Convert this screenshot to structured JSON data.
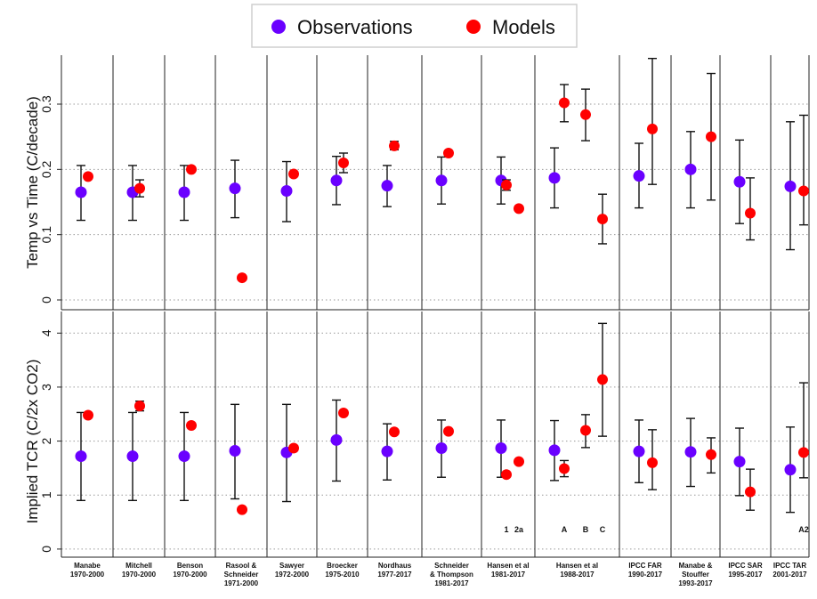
{
  "legend": [
    {
      "label": "Observations",
      "color": "#6a00ff"
    },
    {
      "label": "Models",
      "color": "#ff0000"
    }
  ],
  "chart_data": [
    {
      "type": "scatter",
      "panel": "top",
      "ylabel": "Temp vs Time (C/decade)",
      "ylim": [
        -0.015,
        0.375
      ],
      "yticks": [
        "0",
        "0.1",
        "0.2",
        "0.3"
      ],
      "grid": true,
      "groups": [
        "Manabe\n1970-2000",
        "Mitchell\n1970-2000",
        "Benson\n1970-2000",
        "Rasool &\nSchneider\n1971-2000",
        "Sawyer\n1972-2000",
        "Broecker\n1975-2010",
        "Nordhaus\n1977-2017",
        "Schneider\n& Thompson\n1981-2017",
        "Hansen et al\n1981-2017",
        "Hansen et al\n1988-2017",
        "IPCC FAR\n1990-2017",
        "Manabe &\nStouffer\n1993-2017",
        "IPCC SAR\n1995-2017",
        "IPCC TAR\n2001-2017"
      ],
      "observations": [
        {
          "group": 0,
          "y": 0.165,
          "lo": 0.122,
          "hi": 0.206
        },
        {
          "group": 1,
          "y": 0.165,
          "lo": 0.122,
          "hi": 0.206
        },
        {
          "group": 2,
          "y": 0.165,
          "lo": 0.122,
          "hi": 0.206
        },
        {
          "group": 3,
          "y": 0.171,
          "lo": 0.126,
          "hi": 0.214
        },
        {
          "group": 4,
          "y": 0.167,
          "lo": 0.12,
          "hi": 0.212
        },
        {
          "group": 5,
          "y": 0.183,
          "lo": 0.146,
          "hi": 0.22
        },
        {
          "group": 6,
          "y": 0.175,
          "lo": 0.143,
          "hi": 0.206
        },
        {
          "group": 7,
          "y": 0.183,
          "lo": 0.147,
          "hi": 0.219
        },
        {
          "group": 8,
          "y": 0.183,
          "lo": 0.147,
          "hi": 0.219
        },
        {
          "group": 9,
          "y": 0.187,
          "lo": 0.141,
          "hi": 0.233
        },
        {
          "group": 10,
          "y": 0.19,
          "lo": 0.141,
          "hi": 0.24
        },
        {
          "group": 11,
          "y": 0.2,
          "lo": 0.141,
          "hi": 0.258
        },
        {
          "group": 12,
          "y": 0.181,
          "lo": 0.117,
          "hi": 0.245
        },
        {
          "group": 13,
          "y": 0.174,
          "lo": 0.077,
          "hi": 0.273
        }
      ],
      "models": [
        {
          "group": 0,
          "slot": 0,
          "y": 0.189
        },
        {
          "group": 1,
          "slot": 0,
          "y": 0.171,
          "lo": 0.158,
          "hi": 0.184
        },
        {
          "group": 2,
          "slot": 0,
          "y": 0.2
        },
        {
          "group": 3,
          "slot": 0,
          "y": 0.034
        },
        {
          "group": 4,
          "slot": 0,
          "y": 0.193
        },
        {
          "group": 5,
          "slot": 0,
          "y": 0.21,
          "lo": 0.195,
          "hi": 0.225
        },
        {
          "group": 6,
          "slot": 0,
          "y": 0.236,
          "lo": 0.23,
          "hi": 0.243
        },
        {
          "group": 7,
          "slot": 0,
          "y": 0.225
        },
        {
          "group": 8,
          "slot": 0,
          "y": 0.176,
          "lo": 0.168,
          "hi": 0.184
        },
        {
          "group": 8,
          "slot": 1,
          "y": 0.14
        },
        {
          "group": 9,
          "slot": 0,
          "y": 0.302,
          "lo": 0.273,
          "hi": 0.33
        },
        {
          "group": 9,
          "slot": 1,
          "y": 0.284,
          "lo": 0.244,
          "hi": 0.323
        },
        {
          "group": 9,
          "slot": 2,
          "y": 0.124,
          "lo": 0.086,
          "hi": 0.162
        },
        {
          "group": 10,
          "slot": 0,
          "y": 0.262,
          "lo": 0.177,
          "hi": 0.37
        },
        {
          "group": 11,
          "slot": 0,
          "y": 0.25,
          "lo": 0.153,
          "hi": 0.347
        },
        {
          "group": 12,
          "slot": 0,
          "y": 0.133,
          "lo": 0.092,
          "hi": 0.187
        },
        {
          "group": 13,
          "slot": 0,
          "y": 0.167,
          "lo": 0.115,
          "hi": 0.283
        }
      ]
    },
    {
      "type": "scatter",
      "panel": "bottom",
      "ylabel": "Implied TCR (C/2x CO2)",
      "ylim": [
        -0.15,
        4.4
      ],
      "yticks": [
        "0",
        "1",
        "2",
        "3",
        "4"
      ],
      "grid": true,
      "observations": [
        {
          "group": 0,
          "y": 1.72,
          "lo": 0.9,
          "hi": 2.53
        },
        {
          "group": 1,
          "y": 1.72,
          "lo": 0.9,
          "hi": 2.53
        },
        {
          "group": 2,
          "y": 1.72,
          "lo": 0.9,
          "hi": 2.53
        },
        {
          "group": 3,
          "y": 1.82,
          "lo": 0.93,
          "hi": 2.68
        },
        {
          "group": 4,
          "y": 1.79,
          "lo": 0.88,
          "hi": 2.68
        },
        {
          "group": 5,
          "y": 2.02,
          "lo": 1.26,
          "hi": 2.76
        },
        {
          "group": 6,
          "y": 1.81,
          "lo": 1.28,
          "hi": 2.32
        },
        {
          "group": 7,
          "y": 1.87,
          "lo": 1.33,
          "hi": 2.39
        },
        {
          "group": 8,
          "y": 1.87,
          "lo": 1.33,
          "hi": 2.39
        },
        {
          "group": 9,
          "y": 1.83,
          "lo": 1.27,
          "hi": 2.38
        },
        {
          "group": 10,
          "y": 1.81,
          "lo": 1.23,
          "hi": 2.39
        },
        {
          "group": 11,
          "y": 1.8,
          "lo": 1.16,
          "hi": 2.42
        },
        {
          "group": 12,
          "y": 1.62,
          "lo": 0.99,
          "hi": 2.24
        },
        {
          "group": 13,
          "y": 1.47,
          "lo": 0.68,
          "hi": 2.26
        }
      ],
      "models": [
        {
          "group": 0,
          "slot": 0,
          "y": 2.48
        },
        {
          "group": 1,
          "slot": 0,
          "y": 2.65,
          "lo": 2.56,
          "hi": 2.74
        },
        {
          "group": 2,
          "slot": 0,
          "y": 2.29
        },
        {
          "group": 3,
          "slot": 0,
          "y": 0.73
        },
        {
          "group": 4,
          "slot": 0,
          "y": 1.87
        },
        {
          "group": 5,
          "slot": 0,
          "y": 2.52
        },
        {
          "group": 6,
          "slot": 0,
          "y": 2.17
        },
        {
          "group": 7,
          "slot": 0,
          "y": 2.18
        },
        {
          "group": 8,
          "slot": 0,
          "y": 1.38,
          "label": "1"
        },
        {
          "group": 8,
          "slot": 1,
          "y": 1.62,
          "label": "2a"
        },
        {
          "group": 9,
          "slot": 0,
          "y": 1.49,
          "lo": 1.34,
          "hi": 1.64,
          "label": "A"
        },
        {
          "group": 9,
          "slot": 1,
          "y": 2.2,
          "lo": 1.88,
          "hi": 2.49,
          "label": "B"
        },
        {
          "group": 9,
          "slot": 2,
          "y": 3.14,
          "lo": 2.09,
          "hi": 4.18,
          "label": "C"
        },
        {
          "group": 10,
          "slot": 0,
          "y": 1.6,
          "lo": 1.1,
          "hi": 2.21
        },
        {
          "group": 11,
          "slot": 0,
          "y": 1.75,
          "lo": 1.41,
          "hi": 2.06
        },
        {
          "group": 12,
          "slot": 0,
          "y": 1.06,
          "lo": 0.72,
          "hi": 1.48
        },
        {
          "group": 13,
          "slot": 0,
          "y": 1.79,
          "lo": 1.32,
          "hi": 3.08,
          "label": "A2"
        }
      ]
    }
  ]
}
